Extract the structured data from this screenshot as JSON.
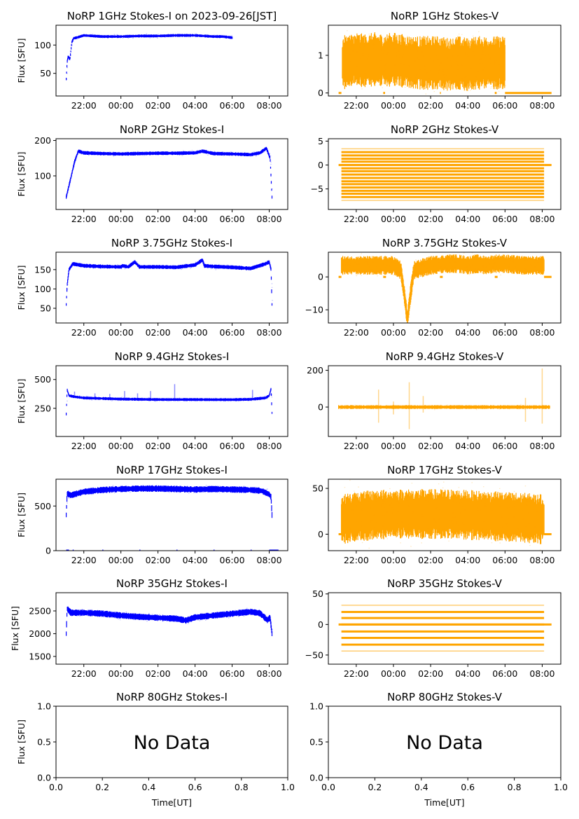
{
  "figure": {
    "date_label": "2023-09-26[JST]",
    "xlabel": "Time[UT]",
    "ylabel": "Flux [SFU]",
    "colors": {
      "stokes_i": "#0000ff",
      "stokes_v": "#ffa500",
      "axis": "#000000"
    }
  },
  "chart_data": [
    {
      "type": "scatter",
      "id": "1ghz-i",
      "title": "NoRP 1GHz Stokes-I on 2023-09-26[JST]",
      "series": "Stokes-I",
      "xlabel": "",
      "ylabel": "Flux [SFU]",
      "xlim": [
        "20:30",
        "09:00"
      ],
      "xticks": [
        "22:00",
        "00:00",
        "02:00",
        "04:00",
        "06:00",
        "08:00"
      ],
      "ylim": [
        10,
        135
      ],
      "yticks": [
        50,
        100
      ],
      "x_hours": [
        21.05,
        21.1,
        21.15,
        21.25,
        21.35,
        21.45,
        21.6,
        22.0,
        22.5,
        23.0,
        24.0,
        25.0,
        26.0,
        27.0,
        28.0,
        28.5,
        29.0,
        29.5,
        30.0
      ],
      "y": [
        40,
        70,
        80,
        75,
        105,
        112,
        113,
        117,
        116,
        115,
        115,
        116,
        116,
        117,
        117,
        116,
        115,
        115,
        113
      ],
      "spread": 2
    },
    {
      "type": "scatter",
      "id": "1ghz-v",
      "title": "NoRP 1GHz Stokes-V",
      "series": "Stokes-V",
      "xlabel": "",
      "ylabel": "",
      "xlim": [
        "20:30",
        "09:00"
      ],
      "xticks": [
        "22:00",
        "00:00",
        "02:00",
        "04:00",
        "06:00",
        "08:00"
      ],
      "ylim": [
        -0.08,
        1.8
      ],
      "yticks": [
        0,
        1
      ],
      "x_hours": [
        21.25,
        21.6,
        22.0,
        22.5,
        23.0,
        23.5,
        24.0,
        24.5,
        25.0,
        25.5,
        26.0,
        26.5,
        27.0,
        27.5,
        28.0,
        28.5,
        29.0,
        29.5,
        30.0
      ],
      "y": [
        0.8,
        0.85,
        0.9,
        0.85,
        0.9,
        0.85,
        0.9,
        0.85,
        0.8,
        0.8,
        0.8,
        0.8,
        0.75,
        0.8,
        0.75,
        0.8,
        0.8,
        0.8,
        0.8
      ],
      "spread": 0.55,
      "zero_segments": [
        [
          21.05,
          21.2
        ],
        [
          23.45,
          23.55
        ],
        [
          26.5,
          26.55
        ],
        [
          29.45,
          29.55
        ],
        [
          30.0,
          32.5
        ]
      ]
    },
    {
      "type": "scatter",
      "id": "2ghz-i",
      "title": "NoRP 2GHz Stokes-I",
      "series": "Stokes-I",
      "xlabel": "",
      "ylabel": "Flux [SFU]",
      "xlim": [
        "20:30",
        "09:00"
      ],
      "xticks": [
        "22:00",
        "00:00",
        "02:00",
        "04:00",
        "06:00",
        "08:00"
      ],
      "ylim": [
        5,
        205
      ],
      "yticks": [
        100,
        200
      ],
      "x_hours": [
        21.05,
        21.3,
        21.5,
        21.7,
        22.0,
        23.0,
        24.0,
        25.0,
        26.0,
        27.0,
        28.0,
        28.4,
        29.0,
        30.0,
        31.0,
        31.5,
        31.85,
        32.05,
        32.15
      ],
      "y": [
        40,
        95,
        140,
        170,
        165,
        163,
        162,
        163,
        164,
        164,
        165,
        170,
        163,
        162,
        160,
        165,
        178,
        150,
        40
      ],
      "spread": 4
    },
    {
      "type": "scatter",
      "id": "2ghz-v",
      "title": "NoRP 2GHz Stokes-V",
      "series": "Stokes-V",
      "xlabel": "",
      "ylabel": "",
      "xlim": [
        "20:30",
        "09:00"
      ],
      "xticks": [
        "22:00",
        "00:00",
        "02:00",
        "04:00",
        "06:00",
        "08:00"
      ],
      "ylim": [
        -9.3,
        5.5
      ],
      "yticks": [
        -5,
        0,
        5
      ],
      "levels": [
        3.4,
        2.7,
        2.0,
        1.3,
        0.7,
        0.0,
        -0.7,
        -1.3,
        -2.0,
        -2.7,
        -3.4,
        -4.0,
        -4.7,
        -5.4,
        -6.0,
        -6.7,
        -7.4
      ],
      "level_span": [
        21.2,
        32.1
      ],
      "zero_segments": [
        [
          21.05,
          21.25
        ],
        [
          32.1,
          32.5
        ]
      ]
    },
    {
      "type": "scatter",
      "id": "3.75ghz-i",
      "title": "NoRP 3.75GHz Stokes-I",
      "series": "Stokes-I",
      "xlabel": "",
      "ylabel": "Flux [SFU]",
      "xlim": [
        "20:30",
        "09:00"
      ],
      "xticks": [
        "22:00",
        "00:00",
        "02:00",
        "04:00",
        "06:00",
        "08:00"
      ],
      "ylim": [
        12,
        195
      ],
      "yticks": [
        50,
        100,
        150
      ],
      "x_hours": [
        21.05,
        21.1,
        21.2,
        21.4,
        22.0,
        23.0,
        24.0,
        24.1,
        24.4,
        24.75,
        25.0,
        26.0,
        27.0,
        28.0,
        28.4,
        28.5,
        29.0,
        30.0,
        31.0,
        31.8,
        32.0,
        32.1,
        32.15
      ],
      "y": [
        60,
        110,
        150,
        165,
        160,
        158,
        157,
        160,
        157,
        170,
        157,
        157,
        156,
        162,
        175,
        160,
        158,
        156,
        153,
        165,
        170,
        150,
        60
      ],
      "spread": 4
    },
    {
      "type": "scatter",
      "id": "3.75ghz-v",
      "title": "NoRP 3.75GHz Stokes-V",
      "series": "Stokes-V",
      "xlabel": "",
      "ylabel": "",
      "xlim": [
        "20:30",
        "09:00"
      ],
      "xticks": [
        "22:00",
        "00:00",
        "02:00",
        "04:00",
        "06:00",
        "08:00"
      ],
      "ylim": [
        -14,
        7.5
      ],
      "yticks": [
        -10,
        0
      ],
      "x_hours": [
        21.2,
        22.0,
        23.0,
        24.0,
        24.4,
        24.6,
        24.75,
        24.9,
        25.1,
        26.0,
        27.0,
        27.5,
        28.0,
        28.5,
        29.0,
        29.5,
        30.0,
        31.0,
        32.1
      ],
      "y": [
        3.5,
        3.5,
        3.5,
        3.5,
        2.0,
        -6.0,
        -13.0,
        -6.0,
        2.0,
        3.5,
        4.0,
        4.0,
        3.5,
        4.0,
        3.5,
        4.0,
        4.0,
        3.5,
        3.5
      ],
      "spread": 2.2,
      "zero_segments": [
        [
          21.05,
          21.2
        ],
        [
          23.45,
          23.6
        ],
        [
          26.5,
          26.65
        ],
        [
          29.45,
          29.6
        ],
        [
          32.1,
          32.5
        ]
      ]
    },
    {
      "type": "scatter",
      "id": "9.4ghz-i",
      "title": "NoRP 9.4GHz Stokes-I",
      "series": "Stokes-I",
      "xlabel": "",
      "ylabel": "Flux [SFU]",
      "xlim": [
        "20:30",
        "09:00"
      ],
      "xticks": [
        "22:00",
        "00:00",
        "02:00",
        "04:00",
        "06:00",
        "08:00"
      ],
      "ylim": [
        5,
        620
      ],
      "yticks": [
        250,
        500
      ],
      "x_hours": [
        21.05,
        21.1,
        21.2,
        21.5,
        22.0,
        23.0,
        24.0,
        25.0,
        26.0,
        27.0,
        28.0,
        29.0,
        30.0,
        31.0,
        31.8,
        32.0,
        32.1,
        32.15
      ],
      "y": [
        200,
        410,
        360,
        350,
        340,
        335,
        330,
        328,
        326,
        326,
        326,
        325,
        325,
        328,
        340,
        360,
        420,
        210
      ],
      "spread": 10,
      "spikes": [
        [
          21.5,
          395
        ],
        [
          22.6,
          380
        ],
        [
          23.4,
          375
        ],
        [
          24.2,
          400
        ],
        [
          24.9,
          380
        ],
        [
          25.6,
          400
        ],
        [
          26.9,
          460
        ],
        [
          31.1,
          410
        ]
      ]
    },
    {
      "type": "scatter",
      "id": "9.4ghz-v",
      "title": "NoRP 9.4GHz Stokes-V",
      "series": "Stokes-V",
      "xlabel": "",
      "ylabel": "",
      "xlim": [
        "20:30",
        "09:00"
      ],
      "xticks": [
        "22:00",
        "00:00",
        "02:00",
        "04:00",
        "06:00",
        "08:00"
      ],
      "ylim": [
        -160,
        225
      ],
      "yticks": [
        0,
        200
      ],
      "x_hours": [
        21.05,
        32.4
      ],
      "y": [
        0,
        0
      ],
      "spread": 8,
      "spikes": [
        [
          23.2,
          95
        ],
        [
          23.2,
          -85
        ],
        [
          24.0,
          30
        ],
        [
          24.0,
          -40
        ],
        [
          24.85,
          135
        ],
        [
          24.85,
          -120
        ],
        [
          25.6,
          60
        ],
        [
          25.6,
          -30
        ],
        [
          31.1,
          50
        ],
        [
          31.1,
          -80
        ],
        [
          32.0,
          210
        ],
        [
          32.0,
          -90
        ]
      ]
    },
    {
      "type": "scatter",
      "id": "17ghz-i",
      "title": "NoRP 17GHz Stokes-I",
      "series": "Stokes-I",
      "xlabel": "",
      "ylabel": "Flux [SFU]",
      "xlim": [
        "20:30",
        "09:00"
      ],
      "xticks": [
        "22:00",
        "00:00",
        "02:00",
        "04:00",
        "06:00",
        "08:00"
      ],
      "ylim": [
        0,
        800
      ],
      "yticks": [
        0,
        500
      ],
      "x_hours": [
        21.05,
        21.1,
        21.3,
        22.0,
        23.0,
        24.0,
        25.0,
        26.0,
        27.0,
        28.0,
        29.0,
        30.0,
        31.0,
        31.6,
        32.0,
        32.1,
        32.15
      ],
      "y": [
        400,
        640,
        620,
        660,
        680,
        690,
        695,
        695,
        690,
        685,
        690,
        685,
        680,
        670,
        630,
        600,
        400
      ],
      "spread": 28,
      "zero_segments": [
        [
          21.05,
          21.2
        ],
        [
          21.4,
          21.45
        ],
        [
          23.0,
          23.05
        ],
        [
          25.0,
          25.05
        ],
        [
          27.0,
          27.05
        ],
        [
          29.0,
          29.05
        ],
        [
          31.0,
          31.05
        ],
        [
          32.0,
          32.5
        ]
      ]
    },
    {
      "type": "scatter",
      "id": "17ghz-v",
      "title": "NoRP 17GHz Stokes-V",
      "series": "Stokes-V",
      "xlabel": "",
      "ylabel": "",
      "xlim": [
        "20:30",
        "09:00"
      ],
      "xticks": [
        "22:00",
        "00:00",
        "02:00",
        "04:00",
        "06:00",
        "08:00"
      ],
      "ylim": [
        -18,
        60
      ],
      "yticks": [
        0,
        50
      ],
      "x_hours": [
        21.2,
        22.0,
        23.0,
        24.0,
        25.0,
        26.0,
        27.0,
        28.0,
        29.0,
        30.0,
        31.0,
        32.1
      ],
      "y": [
        16,
        19,
        21,
        22,
        22,
        22,
        22,
        21,
        20,
        19,
        18,
        16
      ],
      "spread": 21,
      "zero_segments": [
        [
          21.05,
          21.2
        ],
        [
          22.95,
          23.05
        ],
        [
          24.95,
          25.05
        ],
        [
          26.95,
          27.05
        ],
        [
          28.95,
          29.05
        ],
        [
          32.1,
          32.5
        ]
      ]
    },
    {
      "type": "scatter",
      "id": "35ghz-i",
      "title": "NoRP 35GHz Stokes-I",
      "series": "Stokes-I",
      "xlabel": "",
      "ylabel": "Flux [SFU]",
      "xlim": [
        "20:30",
        "09:00"
      ],
      "xticks": [
        "22:00",
        "00:00",
        "02:00",
        "04:00",
        "06:00",
        "08:00"
      ],
      "ylim": [
        1330,
        2900
      ],
      "yticks": [
        1500,
        2000,
        2500
      ],
      "x_hours": [
        21.05,
        21.1,
        21.3,
        22.0,
        23.0,
        24.0,
        25.0,
        26.0,
        27.0,
        27.5,
        28.0,
        29.0,
        30.0,
        31.0,
        31.5,
        31.9,
        32.05,
        32.15
      ],
      "y": [
        2000,
        2550,
        2460,
        2460,
        2440,
        2400,
        2370,
        2350,
        2330,
        2290,
        2360,
        2400,
        2440,
        2480,
        2450,
        2300,
        2350,
        2000
      ],
      "spread": 55
    },
    {
      "type": "scatter",
      "id": "35ghz-v",
      "title": "NoRP 35GHz Stokes-V",
      "series": "Stokes-V",
      "xlabel": "",
      "ylabel": "",
      "xlim": [
        "20:30",
        "09:00"
      ],
      "xticks": [
        "22:00",
        "00:00",
        "02:00",
        "04:00",
        "06:00",
        "08:00"
      ],
      "ylim": [
        -65,
        52
      ],
      "yticks": [
        -50,
        0,
        50
      ],
      "levels": [
        31.5,
        20.5,
        10.5,
        0,
        -11.5,
        -22,
        -33,
        -43.5
      ],
      "level_span": [
        21.2,
        32.1
      ],
      "zero_segments": [
        [
          21.05,
          32.5
        ]
      ]
    },
    {
      "type": "empty",
      "id": "80ghz-i",
      "title": "NoRP 80GHz Stokes-I",
      "series": "Stokes-I",
      "xlabel": "Time[UT]",
      "ylabel": "Flux [SFU]",
      "xlim": [
        0,
        1
      ],
      "xticks": [
        "0.0",
        "0.2",
        "0.4",
        "0.6",
        "0.8",
        "1.0"
      ],
      "ylim": [
        0,
        1
      ],
      "yticks": [
        "0.0",
        "0.5",
        "1.0"
      ],
      "annotation": "No Data"
    },
    {
      "type": "empty",
      "id": "80ghz-v",
      "title": "NoRP 80GHz Stokes-V",
      "series": "Stokes-V",
      "xlabel": "Time[UT]",
      "ylabel": "",
      "xlim": [
        0,
        1
      ],
      "xticks": [
        "0.0",
        "0.2",
        "0.4",
        "0.6",
        "0.8",
        "1.0"
      ],
      "ylim": [
        0,
        1
      ],
      "yticks": [
        "0.0",
        "0.5",
        "1.0"
      ],
      "annotation": "No Data"
    }
  ]
}
